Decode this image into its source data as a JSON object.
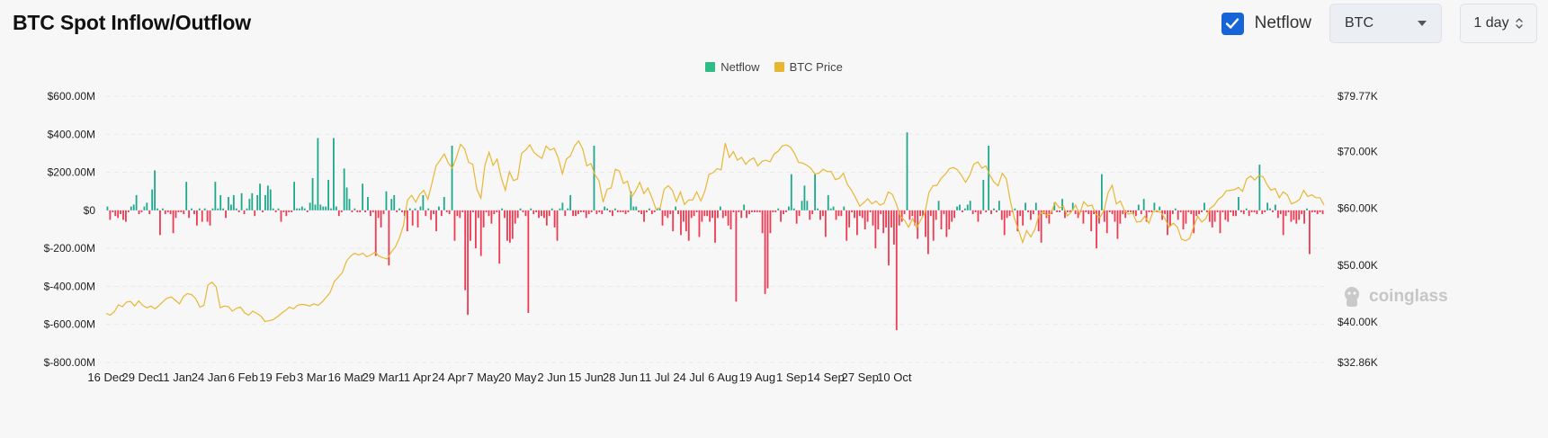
{
  "header": {
    "title": "BTC Spot Inflow/Outflow",
    "netflow_checkbox_label": "Netflow",
    "netflow_checked": true,
    "asset_select_value": "BTC",
    "period_select_value": "1 day"
  },
  "watermark": {
    "text": "coinglass",
    "icon": "coinglass-logo-icon"
  },
  "colors": {
    "positive": "#1fa88c",
    "negative": "#ec3b52",
    "price": "#e8b732",
    "grid": "#e9e9e9",
    "accent": "#1565d8"
  },
  "chart_data": {
    "type": "bar",
    "legend": [
      {
        "name": "Netflow",
        "color": "#2ebd85"
      },
      {
        "name": "BTC Price",
        "color": "#e8b732"
      }
    ],
    "legend_position": "top-center",
    "grid": true,
    "y_left": {
      "ticks": [
        "$600.00M",
        "$400.00M",
        "$200.00M",
        "$0",
        "$-200.00M",
        "$-400.00M",
        "$-600.00M",
        "$-800.00M"
      ],
      "values": [
        600,
        400,
        200,
        0,
        -200,
        -400,
        -600,
        -800
      ],
      "unit": "M USD",
      "range": [
        -800,
        600
      ]
    },
    "y_right": {
      "ticks": [
        "$79.77K",
        "$70.00K",
        "$60.00K",
        "$50.00K",
        "$40.00K",
        "$32.86K"
      ],
      "values": [
        79.77,
        70,
        60,
        50,
        40,
        32.86
      ],
      "unit": "K USD",
      "range": [
        32.86,
        79.77
      ]
    },
    "x_labels": [
      "16 Dec",
      "29 Dec",
      "11 Jan",
      "24 Jan",
      "6 Feb",
      "19 Feb",
      "3 Mar",
      "16 Mar",
      "29 Mar",
      "11 Apr",
      "24 Apr",
      "7 May",
      "20 May",
      "2 Jun",
      "15 Jun",
      "28 Jun",
      "11 Jul",
      "24 Jul",
      "6 Aug",
      "19 Aug",
      "1 Sep",
      "14 Sep",
      "27 Sep",
      "10 Oct"
    ],
    "x_label_day_index": [
      0,
      13,
      26,
      39,
      52,
      65,
      78,
      91,
      104,
      117,
      130,
      143,
      156,
      169,
      182,
      195,
      208,
      221,
      234,
      247,
      260,
      273,
      286,
      299
    ],
    "series": [
      {
        "name": "Netflow",
        "unit": "M USD",
        "values": [
          20,
          -50,
          -10,
          -30,
          -40,
          -20,
          -50,
          -60,
          -10,
          20,
          30,
          80,
          -20,
          -10,
          20,
          40,
          -20,
          110,
          210,
          10,
          -130,
          10,
          -20,
          -10,
          -20,
          -120,
          -40,
          -10,
          -10,
          -20,
          150,
          -40,
          10,
          -20,
          -80,
          10,
          -60,
          10,
          -60,
          -80,
          10,
          150,
          10,
          80,
          10,
          -40,
          70,
          30,
          80,
          10,
          -10,
          90,
          -20,
          10,
          60,
          90,
          -30,
          80,
          140,
          -10,
          80,
          130,
          110,
          10,
          -10,
          10,
          -60,
          -10,
          -30,
          -10,
          -10,
          150,
          10,
          10,
          20,
          10,
          -10,
          40,
          170,
          30,
          380,
          30,
          20,
          20,
          160,
          10,
          380,
          20,
          -30,
          -10,
          220,
          120,
          60,
          -10,
          10,
          -10,
          -10,
          140,
          -10,
          70,
          -30,
          -10,
          -240,
          -40,
          -90,
          -20,
          100,
          -290,
          60,
          80,
          -10,
          10,
          -10,
          -30,
          -110,
          10,
          -80,
          10,
          -90,
          20,
          80,
          -30,
          10,
          -50,
          -20,
          -110,
          20,
          -30,
          70,
          -10,
          -20,
          340,
          -160,
          -30,
          -40,
          -10,
          -420,
          -550,
          -160,
          -10,
          -200,
          -40,
          -240,
          -90,
          -10,
          -30,
          -70,
          -20,
          -10,
          -280,
          10,
          -40,
          -160,
          -170,
          -150,
          -70,
          -40,
          10,
          -10,
          -30,
          -540,
          10,
          -20,
          -10,
          -40,
          -30,
          -40,
          -80,
          -30,
          10,
          -90,
          -160,
          10,
          40,
          -30,
          10,
          80,
          -30,
          -30,
          -20,
          -10,
          -10,
          -40,
          -20,
          -10,
          340,
          -20,
          -10,
          -20,
          20,
          10,
          -10,
          -30,
          10,
          -10,
          -10,
          -10,
          -20,
          -10,
          100,
          20,
          20,
          -10,
          -20,
          -60,
          -10,
          10,
          -20,
          -10,
          10,
          10,
          -80,
          -30,
          -40,
          -20,
          -110,
          20,
          -20,
          -130,
          -60,
          -110,
          -160,
          -40,
          -30,
          -10,
          -140,
          -60,
          -30,
          -30,
          -60,
          -40,
          -170,
          -40,
          20,
          -40,
          -30,
          -80,
          -100,
          -10,
          -480,
          -10,
          -40,
          30,
          -40,
          -20,
          -10,
          -10,
          -10,
          -10,
          -120,
          -440,
          -410,
          -120,
          -10,
          -10,
          10,
          -60,
          -20,
          -10,
          20,
          190,
          10,
          -70,
          -30,
          50,
          130,
          50,
          -50,
          -20,
          190,
          10,
          -50,
          -30,
          -140,
          80,
          10,
          20,
          -50,
          -30,
          -30,
          20,
          -160,
          -90,
          -10,
          -40,
          -130,
          -30,
          -40,
          -100,
          -60,
          -10,
          -80,
          -200,
          -100,
          -20,
          -120,
          -90,
          -290,
          -90,
          -180,
          -630,
          -80,
          -60,
          -20,
          410,
          -50,
          -30,
          -80,
          -150,
          -30,
          -30,
          -140,
          -230,
          -30,
          -160,
          -50,
          50,
          -100,
          -20,
          -140,
          -100,
          -60,
          -40,
          20,
          30,
          -10,
          10,
          30,
          50,
          -20,
          -10,
          -60,
          -20,
          160,
          -10,
          340,
          -20,
          10,
          -10,
          50,
          -50,
          -130,
          -40,
          -30,
          -10,
          10,
          -110,
          -30,
          -80,
          40,
          -10,
          -50,
          -20,
          40,
          -110,
          -170,
          -20,
          -40,
          -70,
          -20,
          40,
          -10,
          -10,
          60,
          -40,
          -10,
          -10,
          40,
          -20,
          -40,
          -10,
          -70,
          -10,
          -20,
          -110,
          -20,
          -200,
          -70,
          190,
          -60,
          -120,
          -10,
          -20,
          -60,
          -150,
          -70,
          -20,
          -40,
          -10,
          -10,
          -20,
          -30,
          30,
          -20,
          60,
          -60,
          -10,
          -10,
          40,
          -10,
          20,
          -50,
          -20,
          -130,
          -80,
          -20,
          10,
          -50,
          -10,
          -100,
          -70,
          -10,
          -20,
          -120,
          -30,
          -20,
          -10,
          40,
          -10,
          -60,
          -90,
          -60,
          -10,
          -120,
          -10,
          -50,
          -60,
          -10,
          -30,
          -30,
          70,
          -10,
          -20,
          10,
          -30,
          -10,
          -10,
          -20,
          240,
          -20,
          -10,
          40,
          10,
          -10,
          30,
          -40,
          -20,
          -130,
          -30,
          -10,
          -60,
          -50,
          -70,
          -50,
          -20,
          -70,
          10,
          -230,
          -10,
          -10,
          -20,
          -10,
          -20
        ]
      },
      {
        "name": "BTC Price",
        "unit": "K USD",
        "values": [
          41.5,
          41.2,
          41.8,
          43.0,
          42.7,
          43.5,
          43.6,
          42.8,
          43.7,
          42.9,
          42.5,
          42.8,
          42.3,
          42.9,
          43.6,
          44.2,
          44.4,
          43.8,
          43.2,
          44.5,
          45.0,
          44.8,
          44.1,
          42.6,
          42.9,
          46.5,
          47.0,
          46.2,
          42.5,
          42.8,
          42.7,
          41.9,
          42.4,
          42.6,
          41.6,
          41.2,
          41.9,
          41.5,
          41.0,
          40.1,
          40.2,
          40.4,
          40.9,
          41.5,
          42.0,
          42.6,
          42.3,
          42.9,
          43.1,
          43.0,
          42.8,
          43.2,
          42.9,
          43.5,
          44.3,
          45.2,
          47.1,
          47.9,
          48.7,
          50.7,
          51.6,
          52.1,
          51.8,
          52.1,
          51.5,
          51.8,
          52.3,
          51.6,
          51.3,
          51.1,
          52.3,
          53.2,
          54.8,
          57.0,
          61.5,
          62.3,
          61.1,
          62.5,
          63.2,
          61.6,
          64.5,
          67.5,
          68.5,
          69.6,
          68.0,
          67.1,
          69.0,
          71.3,
          70.5,
          68.1,
          67.8,
          63.4,
          61.8,
          67.6,
          69.9,
          67.6,
          68.7,
          65.4,
          63.2,
          66.5,
          64.9,
          65.2,
          69.7,
          70.3,
          71.2,
          69.9,
          69.3,
          68.8,
          71.0,
          70.3,
          70.6,
          68.9,
          66.1,
          68.7,
          69.3,
          71.0,
          71.9,
          70.5,
          67.5,
          67.9,
          65.9,
          64.9,
          61.1,
          63.4,
          63.6,
          66.9,
          66.6,
          64.4,
          64.8,
          62.0,
          63.1,
          64.6,
          62.6,
          63.6,
          61.9,
          59.9,
          60.1,
          63.4,
          64.0,
          63.2,
          61.2,
          62.9,
          60.7,
          61.5,
          61.5,
          62.9,
          61.3,
          63.1,
          66.0,
          66.3,
          67.0,
          66.8,
          71.5,
          69.0,
          70.0,
          68.5,
          69.0,
          67.8,
          68.5,
          68.9,
          67.5,
          68.3,
          68.5,
          68.2,
          69.6,
          70.1,
          71.0,
          71.2,
          70.8,
          69.7,
          68.1,
          68.0,
          67.6,
          67.1,
          66.1,
          66.2,
          66.9,
          66.5,
          66.5,
          65.1,
          65.3,
          66.2,
          64.2,
          63.2,
          61.9,
          60.4,
          61.0,
          61.7,
          60.8,
          61.3,
          60.6,
          60.9,
          62.9,
          62.5,
          60.8,
          58.6,
          57.9,
          56.7,
          58.2,
          56.6,
          58.0,
          59.2,
          62.8,
          64.0,
          64.1,
          65.3,
          66.0,
          67.0,
          67.2,
          66.8,
          65.8,
          64.6,
          65.8,
          67.8,
          68.2,
          67.1,
          67.5,
          65.8,
          64.6,
          64.0,
          66.2,
          65.2,
          61.3,
          58.2,
          56.2,
          54.0,
          56.1,
          55.0,
          56.3,
          58.8,
          59.5,
          58.7,
          59.2,
          61.1,
          60.1,
          60.4,
          58.7,
          59.4,
          60.6,
          59.0,
          61.2,
          60.4,
          60.6,
          59.0,
          58.4,
          59.7,
          62.8,
          64.1,
          60.8,
          61.3,
          59.6,
          59.0,
          59.2,
          57.6,
          57.7,
          58.6,
          57.4,
          59.4,
          59.5,
          59.3,
          58.1,
          56.7,
          57.4,
          56.7,
          54.6,
          54.3,
          54.7,
          56.8,
          58.6,
          57.6,
          58.2,
          60.0,
          60.5,
          61.6,
          62.1,
          63.1,
          63.2,
          63.3,
          63.7,
          63.0,
          65.2,
          65.7,
          65.0,
          65.8,
          65.6,
          64.2,
          63.2,
          63.5,
          61.9,
          62.9,
          62.4,
          60.8,
          61.1,
          61.6,
          63.2,
          62.1,
          62.4,
          61.9,
          61.9,
          60.6
        ]
      }
    ]
  }
}
